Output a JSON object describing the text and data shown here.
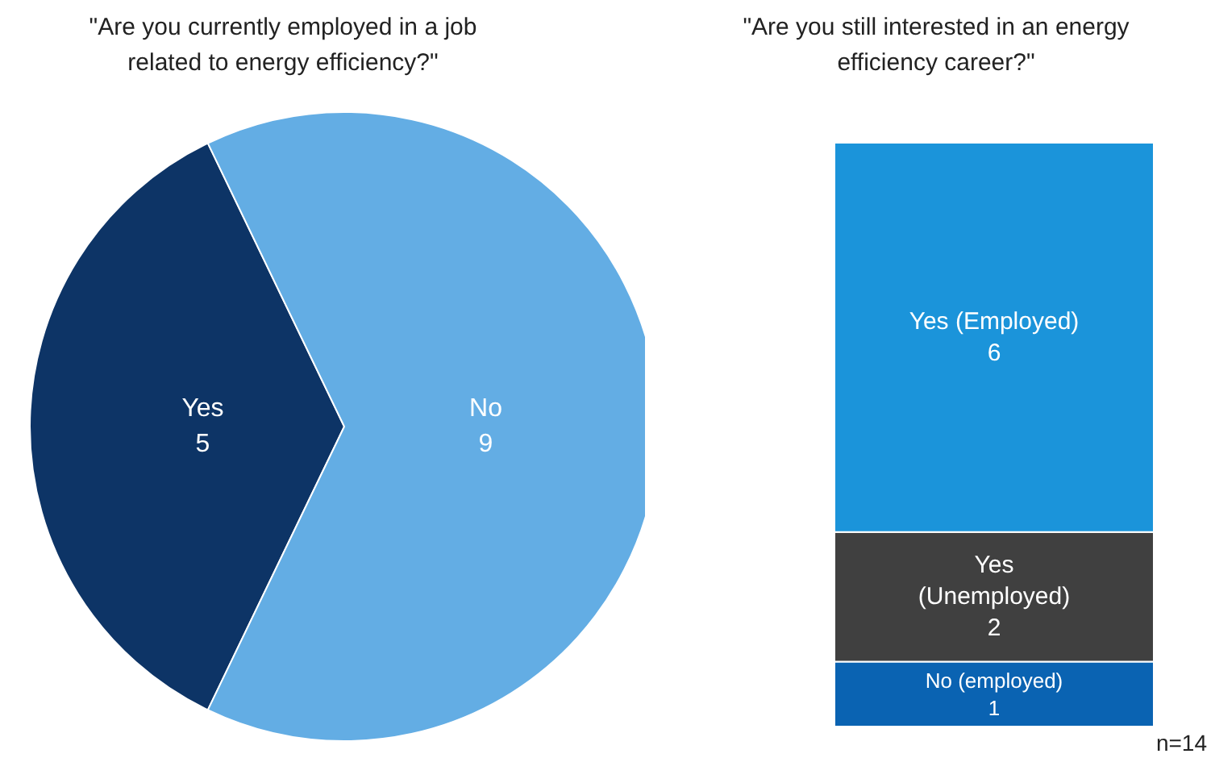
{
  "chart_data": [
    {
      "type": "pie",
      "title": "\"Are you currently employed in a job related to energy efficiency?\"",
      "categories": [
        "Yes",
        "No"
      ],
      "values": [
        5,
        9
      ],
      "colors": [
        "#0d3466",
        "#63ade4"
      ],
      "data_labels": true
    },
    {
      "type": "bar",
      "stacked": true,
      "title": "\"Are you still interested in an energy efficiency career?\"",
      "categories": [
        null
      ],
      "series": [
        {
          "name": "No (employed)",
          "color": "#0a63b2",
          "values": [
            1
          ]
        },
        {
          "name": "Yes (Unemployed)",
          "color": "#404040",
          "values": [
            2
          ]
        },
        {
          "name": "Yes (Employed)",
          "color": "#1b94da",
          "values": [
            6
          ]
        }
      ],
      "data_labels": true,
      "annotations": [
        "n=14"
      ]
    }
  ]
}
